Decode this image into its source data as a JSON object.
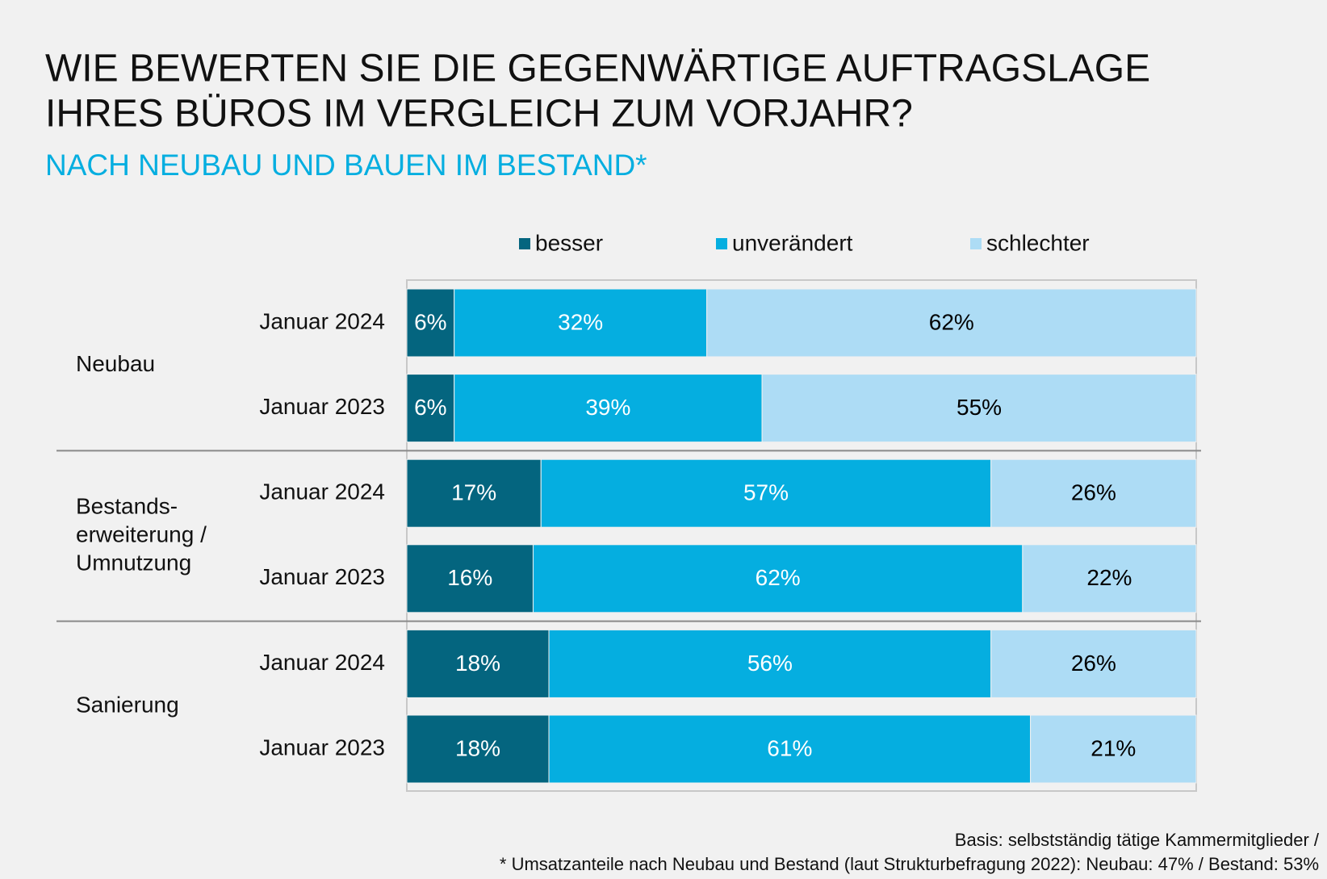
{
  "chart_data": {
    "type": "stacked-bar-horizontal",
    "title": [
      "WIE BEWERTEN SIE DIE GEGENWÄRTIGE AUFTRAGSLAGE",
      "IHRES BÜROS IM VERGLEICH ZUM VORJAHR?"
    ],
    "subtitle": "NACH NEUBAU UND BAUEN IM BESTAND*",
    "groups": [
      [
        "Neubau"
      ],
      [
        "Bestands-",
        "erweiterung /",
        "Umnutzung"
      ],
      [
        "Sanierung"
      ]
    ],
    "categories": [
      "Januar 2024",
      "Januar 2023",
      "Januar 2024",
      "Januar 2023",
      "Januar 2024",
      "Januar 2023"
    ],
    "series": [
      {
        "name": "besser",
        "color": "#04657f",
        "label_color": "#ffffff",
        "values": [
          6,
          6,
          17,
          16,
          18,
          18
        ],
        "value_labels": [
          "6%",
          "6%",
          "17%",
          "16%",
          "18%",
          "18%"
        ]
      },
      {
        "name": "unverändert",
        "color": "#05aee0",
        "label_color": "#ffffff",
        "values": [
          32,
          39,
          57,
          62,
          56,
          61
        ],
        "value_labels": [
          "32%",
          "39%",
          "57%",
          "62%",
          "56%",
          "61%"
        ]
      },
      {
        "name": "schlechter",
        "color": "#addcf5",
        "label_color": "#000000",
        "values": [
          62,
          55,
          26,
          22,
          26,
          21
        ],
        "value_labels": [
          "62%",
          "55%",
          "26%",
          "22%",
          "26%",
          "21%"
        ]
      }
    ],
    "xlim": [
      0,
      100
    ],
    "footnote": [
      "Basis: selbstständig tätige Kammermitglieder /",
      "* Umsatzanteile nach Neubau und Bestand (laut Strukturbefragung 2022): Neubau: 47% / Bestand: 53%"
    ]
  }
}
